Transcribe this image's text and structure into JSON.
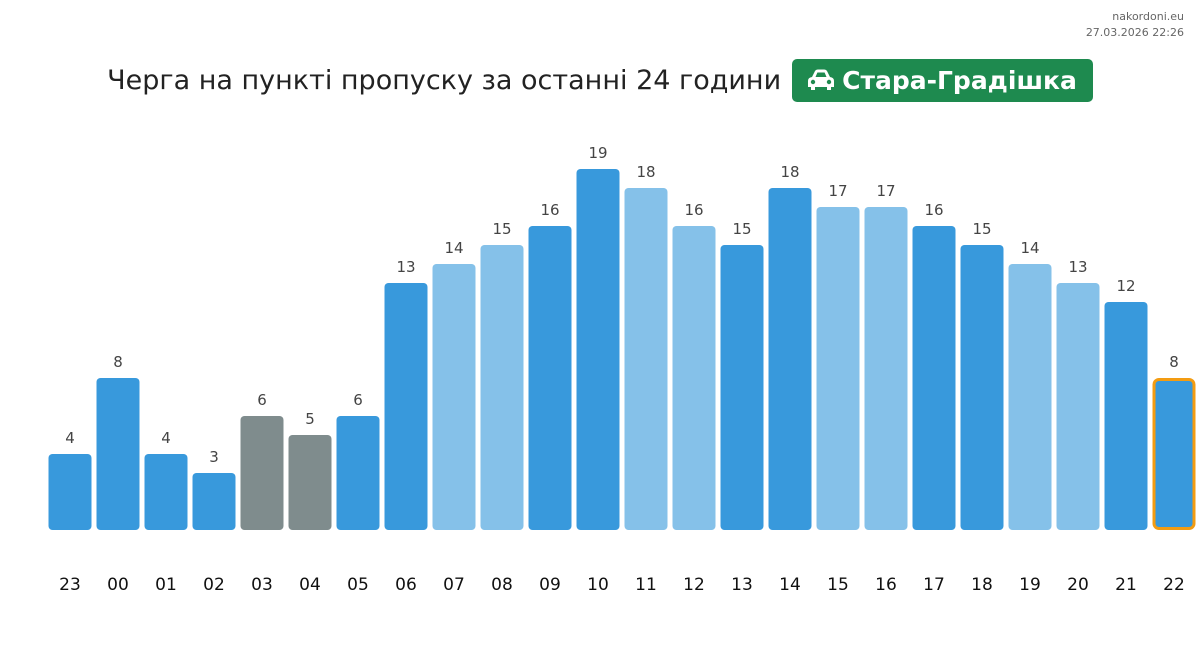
{
  "site": {
    "domain": "nakordoni.eu",
    "timestamp": "27.03.2026 22:26"
  },
  "header": {
    "title": "Черга на пункті пропуску за останні 24 години",
    "checkpoint": "Стара-Градішка",
    "checkpoint_icon": "car-icon",
    "badge_color": "#1e8a4f"
  },
  "chart_data": {
    "type": "bar",
    "title": "Черга на пункті пропуску за останні 24 години",
    "xlabel": "",
    "ylabel": "",
    "ylim": [
      0,
      19
    ],
    "grid": false,
    "categories": [
      "23",
      "00",
      "01",
      "02",
      "03",
      "04",
      "05",
      "06",
      "07",
      "08",
      "09",
      "10",
      "11",
      "12",
      "13",
      "14",
      "15",
      "16",
      "17",
      "18",
      "19",
      "20",
      "21",
      "22"
    ],
    "values": [
      4,
      8,
      4,
      3,
      6,
      5,
      6,
      13,
      14,
      15,
      16,
      19,
      18,
      16,
      15,
      18,
      17,
      17,
      16,
      15,
      14,
      13,
      12,
      8
    ],
    "bar_styles": [
      "dark",
      "dark",
      "dark",
      "dark",
      "gray",
      "gray",
      "dark",
      "dark",
      "light",
      "light",
      "dark",
      "dark",
      "light",
      "light",
      "dark",
      "dark",
      "light",
      "light",
      "dark",
      "dark",
      "light",
      "light",
      "dark",
      "current"
    ],
    "colors": {
      "dark": "#3899dc",
      "light": "#85c1e9",
      "gray": "#7f8c8d",
      "current_outline": "#f39c12"
    }
  }
}
